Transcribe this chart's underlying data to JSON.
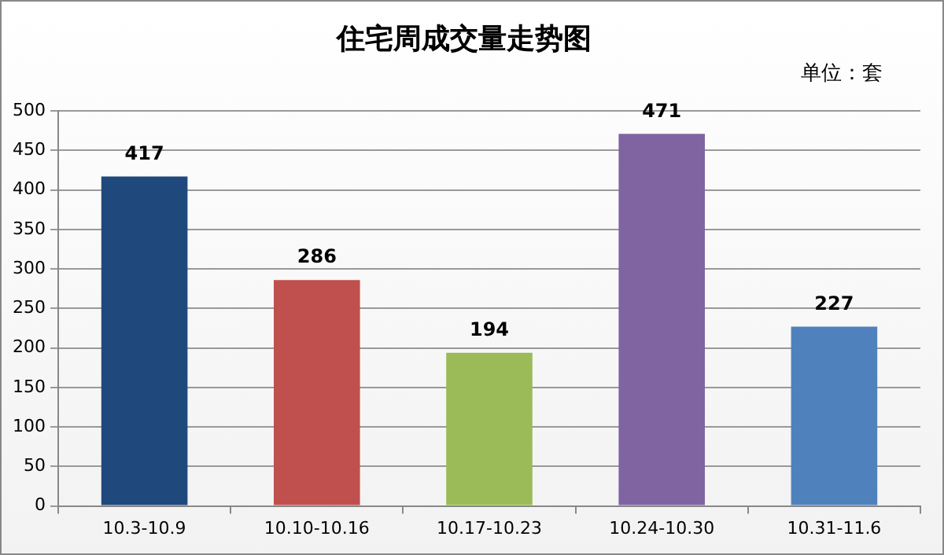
{
  "chart_data": {
    "type": "bar",
    "title": "住宅周成交量走势图",
    "annotations": [
      "单位：套"
    ],
    "categories": [
      "10.3-10.9",
      "10.10-10.16",
      "10.17-10.23",
      "10.24-10.30",
      "10.31-11.6"
    ],
    "values": [
      417,
      286,
      194,
      471,
      227
    ],
    "colors": [
      "#1f497d",
      "#c0504d",
      "#9bbb59",
      "#8064a2",
      "#4f81bd"
    ],
    "ylim": [
      0,
      500
    ],
    "yticks": [
      0,
      50,
      100,
      150,
      200,
      250,
      300,
      350,
      400,
      450,
      500
    ],
    "grid": "y",
    "data_labels": true
  }
}
